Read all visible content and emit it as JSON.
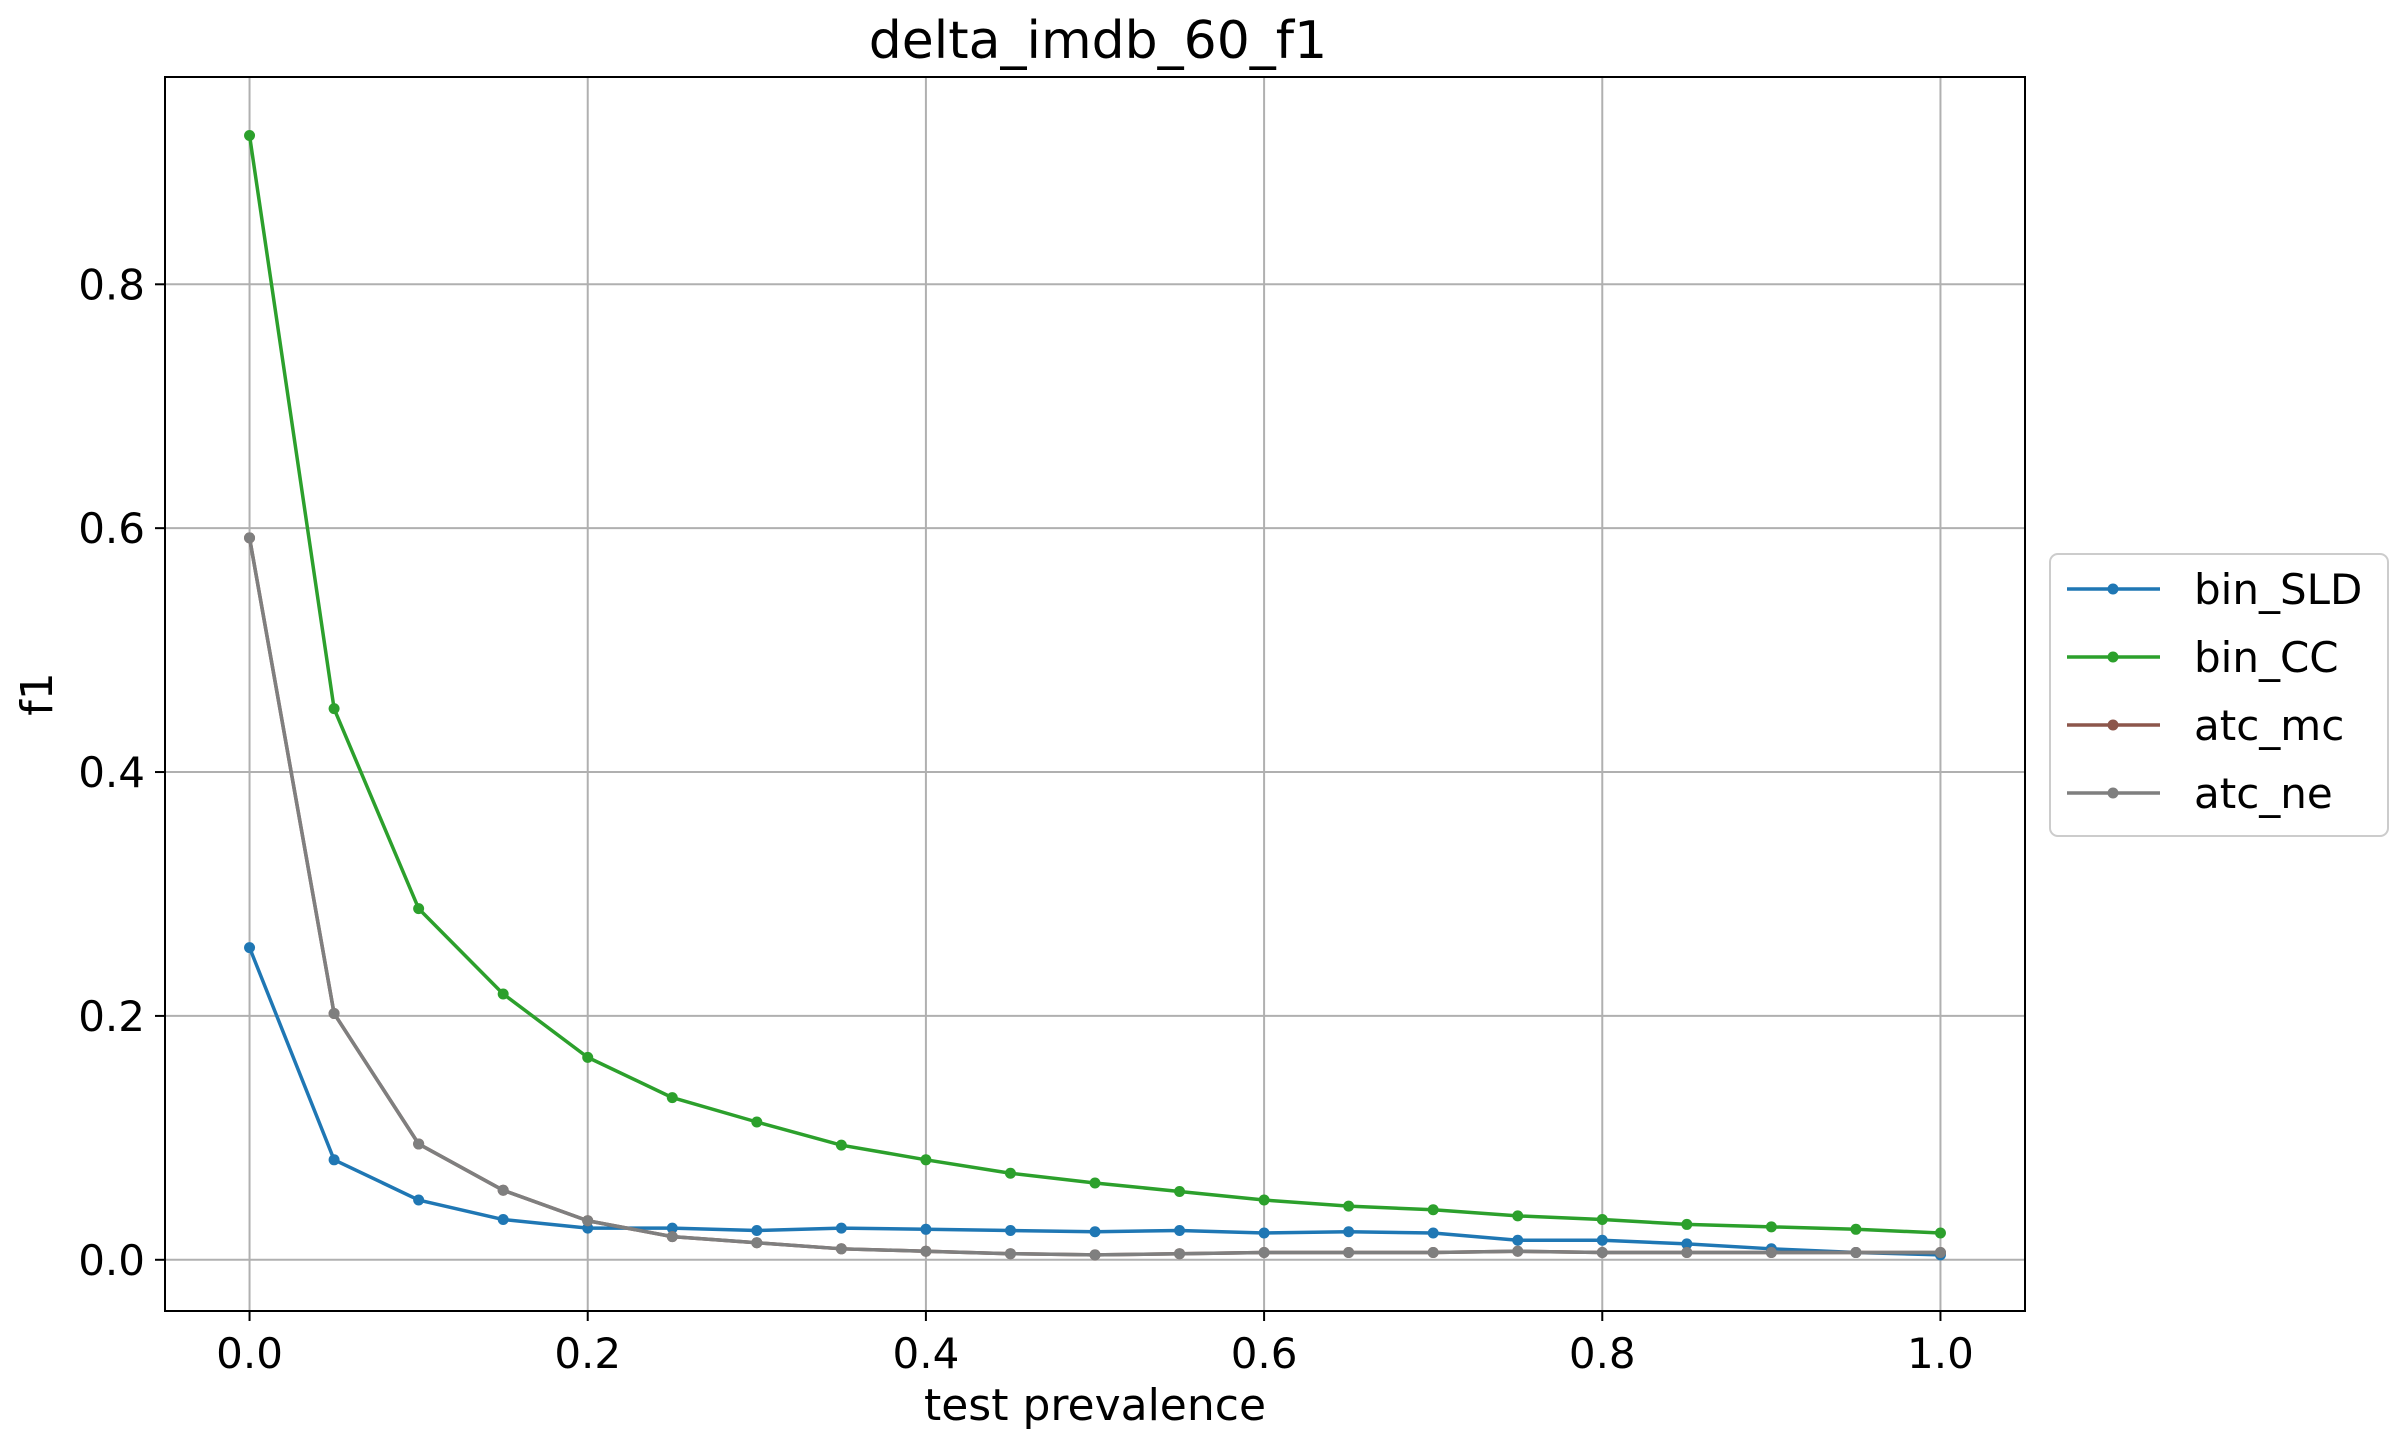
{
  "chart_data": {
    "type": "line",
    "title": "delta_imdb_60_f1",
    "xlabel": "test prevalence",
    "ylabel": "f1",
    "xlim": [
      -0.05,
      1.05
    ],
    "ylim": [
      -0.042,
      0.97
    ],
    "grid": true,
    "legend_position": "outside-right",
    "x": [
      0.0,
      0.05,
      0.1,
      0.15,
      0.2,
      0.25,
      0.3,
      0.35,
      0.4,
      0.45,
      0.5,
      0.55,
      0.6,
      0.65,
      0.7,
      0.75,
      0.8,
      0.85,
      0.9,
      0.95,
      1.0
    ],
    "x_ticks": [
      {
        "value": 0.0,
        "label": "0.0"
      },
      {
        "value": 0.2,
        "label": "0.2"
      },
      {
        "value": 0.4,
        "label": "0.4"
      },
      {
        "value": 0.6,
        "label": "0.6"
      },
      {
        "value": 0.8,
        "label": "0.8"
      },
      {
        "value": 1.0,
        "label": "1.0"
      }
    ],
    "y_ticks": [
      {
        "value": 0.0,
        "label": "0.0"
      },
      {
        "value": 0.2,
        "label": "0.2"
      },
      {
        "value": 0.4,
        "label": "0.4"
      },
      {
        "value": 0.6,
        "label": "0.6"
      },
      {
        "value": 0.8,
        "label": "0.8"
      }
    ],
    "series": [
      {
        "name": "bin_SLD",
        "color": "#1f77b4",
        "values": [
          0.256,
          0.082,
          0.049,
          0.033,
          0.026,
          0.026,
          0.024,
          0.026,
          0.025,
          0.024,
          0.023,
          0.024,
          0.022,
          0.023,
          0.022,
          0.016,
          0.016,
          0.013,
          0.009,
          0.006,
          0.004
        ]
      },
      {
        "name": "bin_CC",
        "color": "#2ca02c",
        "values": [
          0.922,
          0.452,
          0.288,
          0.218,
          0.166,
          0.133,
          0.113,
          0.094,
          0.082,
          0.071,
          0.063,
          0.056,
          0.049,
          0.044,
          0.041,
          0.036,
          0.033,
          0.029,
          0.027,
          0.025,
          0.022
        ]
      },
      {
        "name": "atc_mc",
        "color": "#8c564b",
        "values": [
          0.592,
          0.202,
          0.095,
          0.057,
          0.032,
          0.019,
          0.014,
          0.009,
          0.007,
          0.005,
          0.004,
          0.005,
          0.006,
          0.006,
          0.006,
          0.007,
          0.006,
          0.006,
          0.006,
          0.006,
          0.006
        ]
      },
      {
        "name": "atc_ne",
        "color": "#7f7f7f",
        "values": [
          0.592,
          0.202,
          0.095,
          0.057,
          0.032,
          0.019,
          0.014,
          0.009,
          0.007,
          0.005,
          0.004,
          0.005,
          0.006,
          0.006,
          0.006,
          0.007,
          0.006,
          0.006,
          0.006,
          0.006,
          0.006
        ]
      }
    ]
  }
}
